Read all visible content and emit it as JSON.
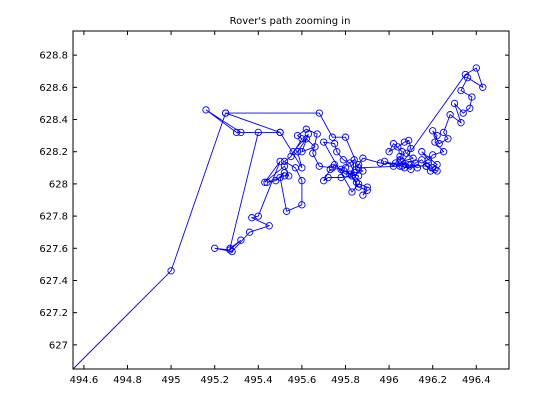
{
  "figure": {
    "title": "Rover's path zooming in"
  },
  "chart_data": {
    "type": "line",
    "title": "Rover's path zooming in",
    "xlabel": "",
    "ylabel": "",
    "xlim": [
      494.55,
      496.55
    ],
    "ylim": [
      626.85,
      628.95
    ],
    "x_ticks": [
      494.6,
      494.8,
      495,
      495.2,
      495.4,
      495.6,
      495.8,
      496,
      496.2,
      496.4
    ],
    "x_tick_labels": [
      "494.6",
      "494.8",
      "495",
      "495.2",
      "495.4",
      "495.6",
      "495.8",
      "496",
      "496.2",
      "496.4"
    ],
    "y_ticks": [
      627,
      627.2,
      627.4,
      627.6,
      627.8,
      628,
      628.2,
      628.4,
      628.6,
      628.8
    ],
    "y_tick_labels": [
      "627",
      "627.2",
      "627.4",
      "627.6",
      "627.8",
      "628",
      "628.2",
      "628.4",
      "628.6",
      "628.8"
    ],
    "grid": false,
    "legend": "none",
    "series": [
      {
        "color": "#0000ff",
        "marker": "circle",
        "x": [
          494.55,
          495.0,
          495.25,
          495.68,
          495.74,
          495.8,
          495.86,
          496.05,
          496.35,
          496.4,
          496.43,
          496.36,
          496.33,
          496.38,
          496.37,
          496.34,
          496.3,
          496.33,
          496.28,
          496.25,
          496.27,
          496.23,
          496.2,
          496.22,
          496.21,
          496.25,
          496.2,
          496.18,
          496.15,
          496.22,
          496.2,
          496.18,
          496.13,
          496.1,
          496.07,
          496.05,
          496.06,
          496.02,
          496.0,
          496.04,
          496.07,
          496.09,
          496.1,
          496.08,
          496.11,
          496.06,
          496.09,
          496.03,
          496.05,
          496.02,
          495.98,
          496.06,
          496.1,
          496.12,
          496.15,
          496.17,
          496.19,
          496.21,
          496.22,
          496.17,
          495.96,
          495.88,
          495.86,
          495.85,
          495.88,
          495.83,
          495.84,
          495.78,
          495.82,
          495.86,
          495.85,
          495.83,
          495.78,
          495.72,
          495.7,
          495.73,
          495.8,
          495.86,
          495.9,
          495.88,
          495.9,
          495.86,
          495.83,
          495.7,
          495.75,
          495.76,
          495.79,
          495.82,
          495.84,
          495.8,
          495.75,
          495.74,
          495.68,
          495.65,
          495.67,
          495.62,
          495.58,
          495.6,
          495.55,
          495.52,
          495.57,
          495.6,
          495.6,
          495.53,
          495.5,
          495.52,
          495.48,
          495.44,
          495.52,
          495.54,
          495.52,
          495.43,
          495.5,
          495.4,
          495.37,
          495.45,
          495.36,
          495.28,
          495.2,
          495.27,
          495.32,
          495.27,
          495.4,
          495.32,
          495.16,
          495.3,
          495.5,
          495.25,
          495.5,
          495.6,
          495.58,
          495.62,
          495.66,
          495.6,
          495.63,
          495.56
        ],
        "y": [
          626.85,
          627.46,
          628.44,
          628.44,
          628.29,
          628.29,
          628.1,
          628.11,
          628.68,
          628.72,
          628.6,
          628.66,
          628.58,
          628.54,
          628.47,
          628.44,
          628.5,
          628.38,
          628.43,
          628.32,
          628.28,
          628.25,
          628.33,
          628.3,
          628.26,
          628.2,
          628.18,
          628.15,
          628.2,
          628.12,
          628.1,
          628.13,
          628.1,
          628.12,
          628.1,
          628.15,
          628.2,
          628.25,
          628.2,
          628.23,
          628.26,
          628.27,
          628.22,
          628.19,
          628.16,
          628.14,
          628.12,
          628.13,
          628.17,
          628.11,
          628.14,
          628.11,
          628.09,
          628.13,
          628.15,
          628.11,
          628.08,
          628.09,
          628.08,
          628.11,
          628.13,
          628.16,
          628.12,
          628.09,
          628.08,
          628.05,
          628.15,
          628.09,
          628.06,
          628.05,
          628.01,
          628.05,
          628.04,
          628.04,
          628.02,
          628.09,
          628.1,
          627.98,
          627.96,
          627.93,
          627.98,
          628.0,
          627.95,
          628.26,
          628.25,
          628.2,
          628.15,
          628.13,
          628.07,
          628.06,
          628.12,
          628.1,
          628.11,
          628.19,
          628.31,
          628.34,
          628.3,
          628.28,
          628.17,
          628.14,
          628.1,
          628.02,
          627.87,
          627.83,
          628.04,
          628.07,
          628.02,
          628.01,
          628.05,
          628.05,
          628.11,
          628.01,
          628.14,
          627.8,
          627.79,
          627.74,
          627.7,
          627.58,
          627.6,
          627.59,
          627.65,
          627.6,
          628.32,
          628.32,
          628.46,
          628.32,
          628.32,
          628.44,
          628.32,
          628.1,
          628.2,
          628.28,
          628.23,
          628.2,
          628.31,
          628.2
        ]
      }
    ]
  }
}
